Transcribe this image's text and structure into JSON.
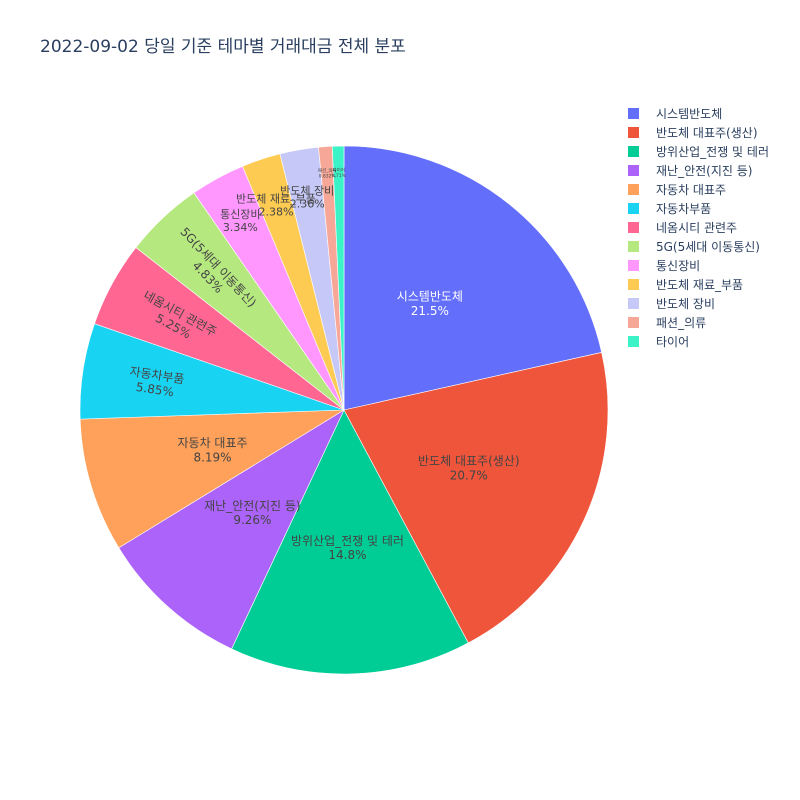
{
  "chart_data": {
    "type": "pie",
    "title": "2022-09-02 당일 기준 테마별 거래대금 전체 분포",
    "direction": "clockwise",
    "start": "12 o'clock",
    "categories": [
      "시스템반도체",
      "반도체 대표주(생산)",
      "방위산업_전쟁 및 테러",
      "재난_안전(지진 등)",
      "자동차 대표주",
      "자동차부품",
      "네옴시티 관련주",
      "5G(5세대 이동통신)",
      "통신장비",
      "반도체 재료_부품",
      "반도체 장비",
      "패션_의류",
      "타이어"
    ],
    "values": [
      21.5,
      20.7,
      14.8,
      9.26,
      8.19,
      5.85,
      5.25,
      4.83,
      3.34,
      2.38,
      2.36,
      0.83,
      0.71
    ],
    "labels": [
      "21.5%",
      "20.7%",
      "14.8%",
      "9.26%",
      "8.19%",
      "5.85%",
      "5.25%",
      "4.83%",
      "3.34%",
      "2.38%",
      "2.36%",
      "0.832%",
      "0.71%"
    ],
    "colors": [
      "#636efa",
      "#EF553B",
      "#00cc96",
      "#ab63fa",
      "#FFA15A",
      "#19d3f3",
      "#FF6692",
      "#B6E880",
      "#FF97FF",
      "#FECB52",
      "#c6c8f8",
      "#f7a797",
      "#3cf3c8"
    ],
    "legend_position": "right"
  }
}
